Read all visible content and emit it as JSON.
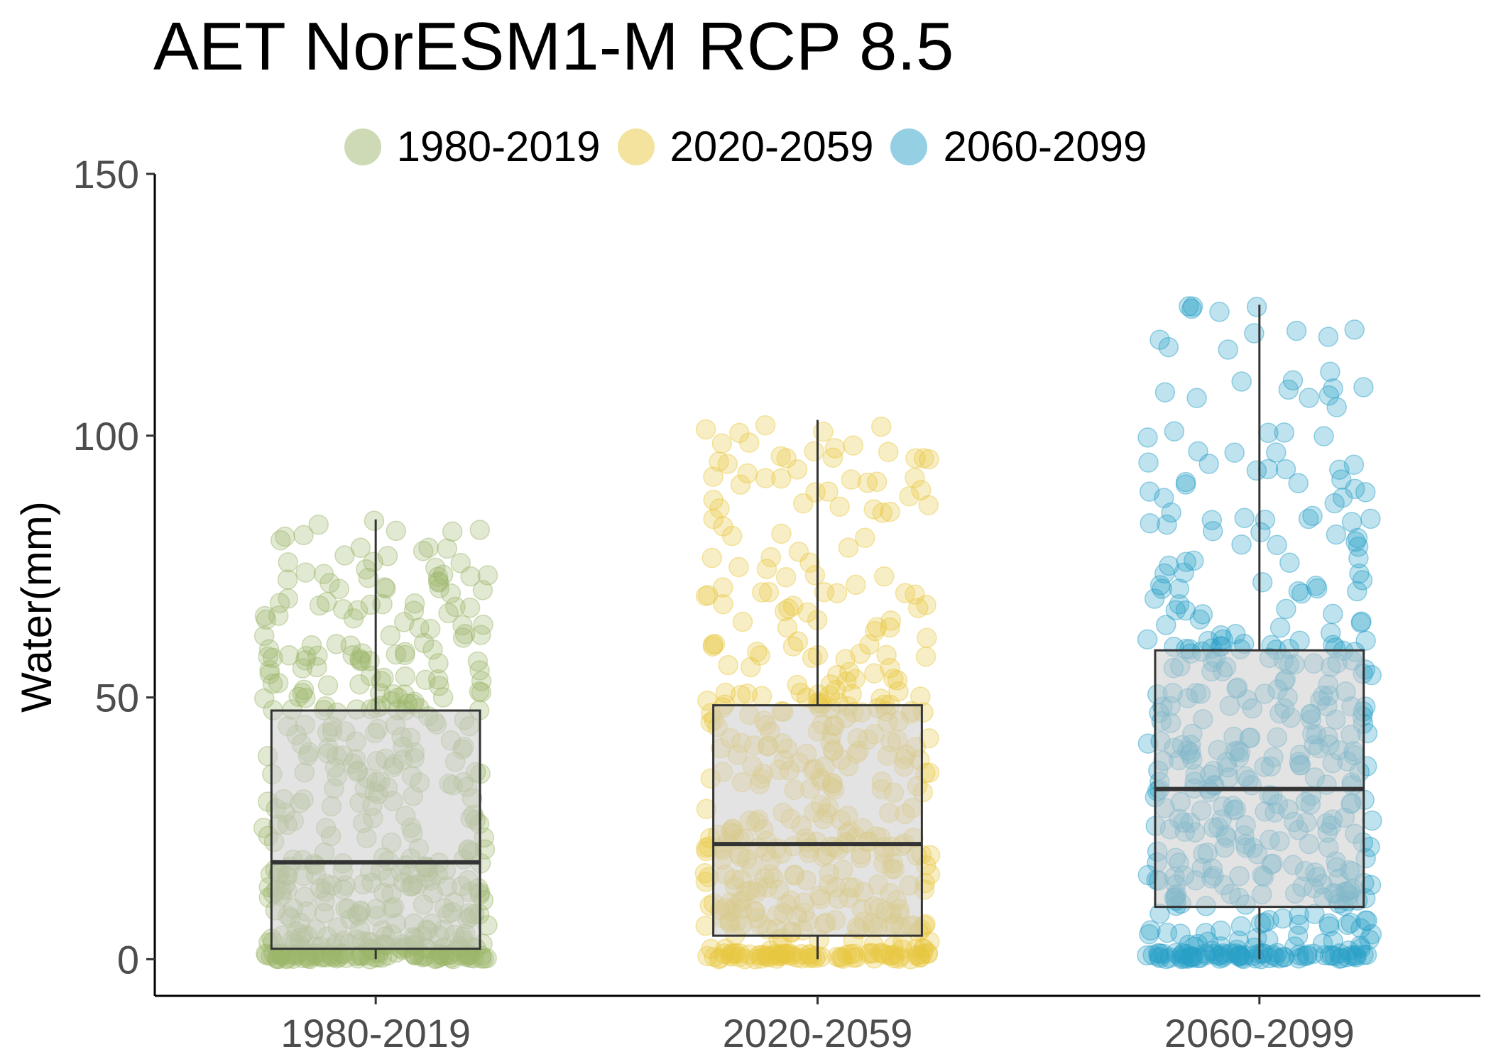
{
  "chart_data": {
    "type": "box",
    "title": "AET NorESM1-M RCP 8.5",
    "ylabel": "Water(mm)",
    "xlabel": "",
    "ylim": [
      -7,
      150
    ],
    "yticks": [
      0,
      50,
      100,
      150
    ],
    "categories": [
      "1980-2019",
      "2020-2059",
      "2060-2099"
    ],
    "legend": {
      "position": "top",
      "entries": [
        "1980-2019",
        "2020-2059",
        "2060-2099"
      ]
    },
    "grid": false,
    "series": [
      {
        "name": "1980-2019",
        "color": "#9BB56B",
        "box": {
          "min": 0,
          "q1": 2,
          "median": 18.5,
          "q3": 47.5,
          "max": 84
        },
        "point_count": 480
      },
      {
        "name": "2020-2059",
        "color": "#E8C840",
        "box": {
          "min": 0,
          "q1": 4.5,
          "median": 22,
          "q3": 48.5,
          "max": 103
        },
        "point_count": 480
      },
      {
        "name": "2060-2099",
        "color": "#29A0C8",
        "box": {
          "min": 0,
          "q1": 10,
          "median": 32.5,
          "q3": 59,
          "max": 125
        },
        "point_count": 480
      }
    ]
  }
}
